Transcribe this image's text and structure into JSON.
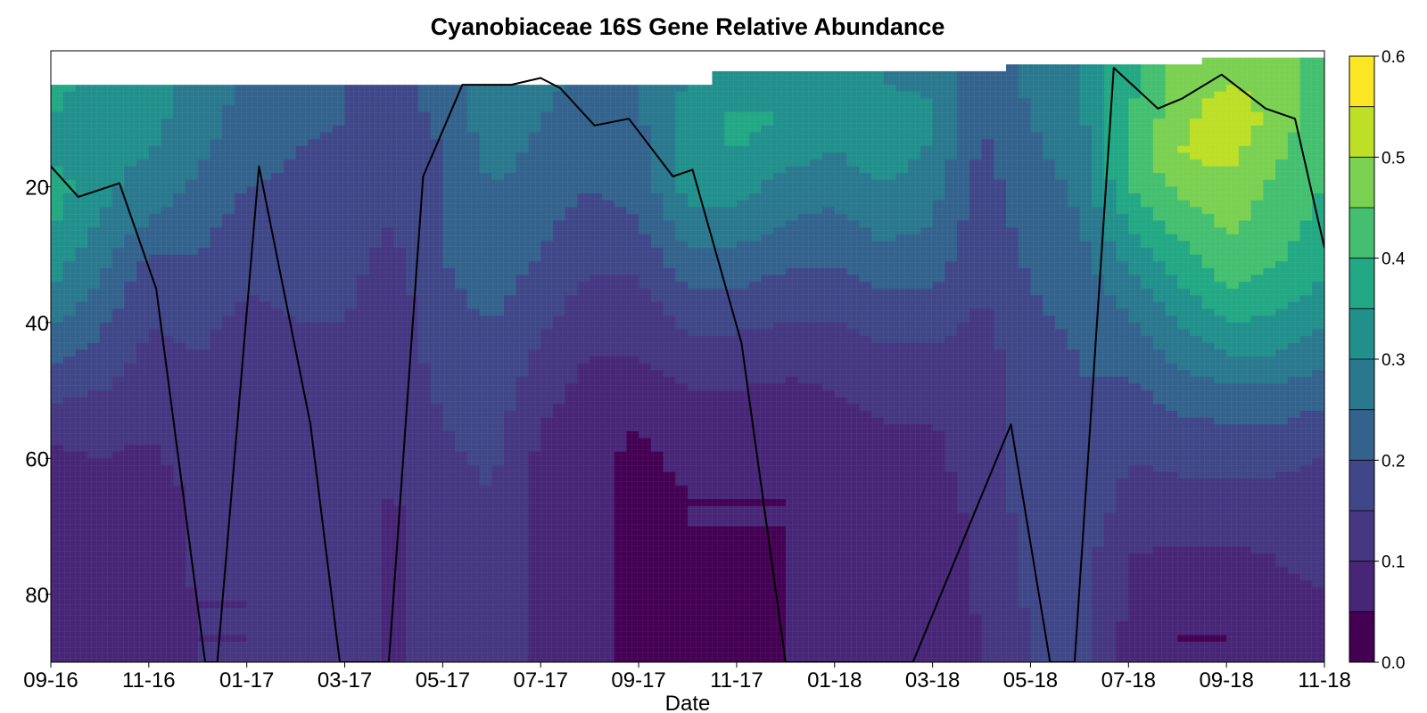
{
  "chart_data": {
    "type": "heatmap",
    "title": "Cyanobiaceae 16S Gene Relative Abundance",
    "xlabel": "Date",
    "ylabel": "",
    "x_tick_labels": [
      "09-16",
      "11-16",
      "01-17",
      "03-17",
      "05-17",
      "07-17",
      "09-17",
      "11-17",
      "01-18",
      "03-18",
      "05-18",
      "07-18",
      "09-18",
      "11-18"
    ],
    "y_ticks": [
      20,
      40,
      60,
      80
    ],
    "y_range": [
      0,
      90
    ],
    "y_inverted": true,
    "colorbar": {
      "ticks": [
        0.0,
        0.1,
        0.2,
        0.3,
        0.4,
        0.5,
        0.6
      ],
      "tick_labels": [
        "0.0",
        "0.1",
        "0.2",
        "0.3",
        "0.4",
        "0.5",
        "0.6"
      ],
      "levels": [
        0.0,
        0.05,
        0.1,
        0.15,
        0.2,
        0.25,
        0.3,
        0.35,
        0.4,
        0.45,
        0.5,
        0.55,
        0.6
      ],
      "colors": [
        "#440154",
        "#482677",
        "#453781",
        "#3f4788",
        "#33638d",
        "#2a788e",
        "#21908c",
        "#22a884",
        "#44bf70",
        "#7ad151",
        "#bddf26",
        "#fde725"
      ]
    },
    "x_index_range": [
      0,
      26
    ],
    "depths": [
      5,
      10,
      15,
      20,
      25,
      30,
      35,
      40,
      45,
      50,
      55,
      60,
      65,
      70,
      75,
      80,
      85,
      90
    ],
    "sample_index": [
      0,
      1,
      2,
      3,
      4,
      5,
      6,
      7,
      8,
      9,
      10,
      11,
      12,
      13,
      14,
      15,
      16,
      17,
      18,
      19,
      20,
      21,
      22,
      23,
      24,
      25,
      26
    ],
    "surface_depth": [
      5,
      5,
      5,
      5,
      5,
      5,
      5,
      5,
      5,
      5,
      5,
      5,
      5,
      5,
      3,
      3,
      3,
      3,
      3,
      3,
      2,
      2,
      2,
      2,
      1,
      1,
      1
    ],
    "abundance": [
      [
        0.36,
        0.34,
        0.33,
        0.28,
        0.24,
        0.22,
        0.2,
        0.18,
        0.22,
        0.3,
        0.26,
        0.24,
        0.25,
        0.3,
        0.33,
        0.32,
        0.3,
        0.3,
        0.29,
        0.22,
        0.26,
        0.3,
        0.38,
        0.46,
        0.5,
        0.48,
        0.42
      ],
      [
        0.35,
        0.33,
        0.32,
        0.27,
        0.23,
        0.21,
        0.2,
        0.18,
        0.21,
        0.28,
        0.25,
        0.23,
        0.24,
        0.33,
        0.36,
        0.35,
        0.33,
        0.34,
        0.31,
        0.2,
        0.25,
        0.29,
        0.4,
        0.48,
        0.54,
        0.48,
        0.42
      ],
      [
        0.34,
        0.32,
        0.3,
        0.26,
        0.22,
        0.2,
        0.19,
        0.17,
        0.2,
        0.27,
        0.24,
        0.22,
        0.23,
        0.34,
        0.35,
        0.32,
        0.3,
        0.33,
        0.29,
        0.19,
        0.24,
        0.27,
        0.42,
        0.5,
        0.52,
        0.46,
        0.41
      ],
      [
        0.38,
        0.31,
        0.28,
        0.24,
        0.2,
        0.19,
        0.18,
        0.16,
        0.2,
        0.25,
        0.23,
        0.2,
        0.22,
        0.32,
        0.32,
        0.28,
        0.26,
        0.3,
        0.27,
        0.18,
        0.23,
        0.26,
        0.4,
        0.46,
        0.48,
        0.44,
        0.4
      ],
      [
        0.36,
        0.3,
        0.25,
        0.22,
        0.18,
        0.18,
        0.17,
        0.15,
        0.2,
        0.24,
        0.21,
        0.18,
        0.2,
        0.28,
        0.28,
        0.25,
        0.24,
        0.27,
        0.25,
        0.17,
        0.22,
        0.25,
        0.36,
        0.42,
        0.46,
        0.43,
        0.38
      ],
      [
        0.33,
        0.27,
        0.2,
        0.2,
        0.16,
        0.17,
        0.16,
        0.14,
        0.2,
        0.23,
        0.2,
        0.16,
        0.17,
        0.24,
        0.24,
        0.22,
        0.21,
        0.24,
        0.23,
        0.16,
        0.21,
        0.23,
        0.32,
        0.38,
        0.44,
        0.41,
        0.36
      ],
      [
        0.3,
        0.24,
        0.17,
        0.18,
        0.15,
        0.16,
        0.16,
        0.13,
        0.19,
        0.22,
        0.18,
        0.14,
        0.14,
        0.2,
        0.2,
        0.18,
        0.18,
        0.2,
        0.2,
        0.15,
        0.2,
        0.22,
        0.28,
        0.34,
        0.4,
        0.38,
        0.34
      ],
      [
        0.26,
        0.21,
        0.15,
        0.16,
        0.14,
        0.15,
        0.15,
        0.12,
        0.18,
        0.2,
        0.16,
        0.12,
        0.12,
        0.16,
        0.16,
        0.15,
        0.15,
        0.17,
        0.17,
        0.14,
        0.19,
        0.21,
        0.24,
        0.3,
        0.35,
        0.34,
        0.3
      ],
      [
        0.21,
        0.18,
        0.14,
        0.15,
        0.13,
        0.15,
        0.14,
        0.12,
        0.17,
        0.19,
        0.14,
        0.1,
        0.1,
        0.13,
        0.13,
        0.12,
        0.12,
        0.14,
        0.14,
        0.13,
        0.18,
        0.2,
        0.21,
        0.26,
        0.3,
        0.3,
        0.26
      ],
      [
        0.17,
        0.15,
        0.13,
        0.14,
        0.12,
        0.14,
        0.14,
        0.11,
        0.16,
        0.18,
        0.12,
        0.08,
        0.07,
        0.1,
        0.1,
        0.09,
        0.1,
        0.12,
        0.12,
        0.12,
        0.18,
        0.2,
        0.19,
        0.22,
        0.24,
        0.24,
        0.22
      ],
      [
        0.12,
        0.12,
        0.11,
        0.13,
        0.12,
        0.14,
        0.13,
        0.1,
        0.15,
        0.17,
        0.1,
        0.07,
        0.05,
        0.08,
        0.08,
        0.07,
        0.08,
        0.1,
        0.1,
        0.12,
        0.18,
        0.2,
        0.17,
        0.19,
        0.2,
        0.2,
        0.18
      ],
      [
        0.09,
        0.1,
        0.09,
        0.12,
        0.12,
        0.13,
        0.13,
        0.1,
        0.14,
        0.16,
        0.09,
        0.06,
        0.04,
        0.06,
        0.06,
        0.06,
        0.07,
        0.09,
        0.09,
        0.12,
        0.18,
        0.2,
        0.15,
        0.16,
        0.16,
        0.16,
        0.15
      ],
      [
        0.08,
        0.09,
        0.08,
        0.11,
        0.11,
        0.13,
        0.12,
        0.1,
        0.13,
        0.15,
        0.08,
        0.06,
        0.04,
        0.05,
        0.05,
        0.05,
        0.06,
        0.08,
        0.09,
        0.11,
        0.18,
        0.19,
        0.14,
        0.14,
        0.14,
        0.14,
        0.13
      ],
      [
        0.07,
        0.08,
        0.08,
        0.11,
        0.11,
        0.13,
        0.12,
        0.09,
        0.13,
        0.15,
        0.08,
        0.06,
        0.04,
        0.05,
        0.05,
        0.05,
        0.06,
        0.08,
        0.08,
        0.11,
        0.17,
        0.18,
        0.12,
        0.12,
        0.12,
        0.12,
        0.12
      ],
      [
        0.07,
        0.08,
        0.08,
        0.11,
        0.11,
        0.13,
        0.12,
        0.09,
        0.12,
        0.14,
        0.08,
        0.06,
        0.04,
        0.05,
        0.04,
        0.05,
        0.06,
        0.07,
        0.08,
        0.11,
        0.16,
        0.17,
        0.1,
        0.08,
        0.08,
        0.1,
        0.11
      ],
      [
        0.06,
        0.07,
        0.08,
        0.1,
        0.1,
        0.12,
        0.12,
        0.09,
        0.12,
        0.14,
        0.08,
        0.06,
        0.04,
        0.05,
        0.04,
        0.05,
        0.06,
        0.07,
        0.08,
        0.11,
        0.16,
        0.17,
        0.1,
        0.06,
        0.06,
        0.09,
        0.1
      ],
      [
        0.06,
        0.07,
        0.07,
        0.1,
        0.1,
        0.12,
        0.12,
        0.09,
        0.12,
        0.14,
        0.08,
        0.06,
        0.04,
        0.05,
        0.04,
        0.05,
        0.06,
        0.07,
        0.07,
        0.1,
        0.15,
        0.16,
        0.09,
        0.05,
        0.05,
        0.08,
        0.1
      ],
      [
        0.06,
        0.07,
        0.07,
        0.1,
        0.1,
        0.12,
        0.12,
        0.09,
        0.12,
        0.14,
        0.08,
        0.06,
        0.04,
        0.05,
        0.04,
        0.05,
        0.06,
        0.07,
        0.07,
        0.1,
        0.15,
        0.16,
        0.09,
        0.05,
        0.05,
        0.08,
        0.1
      ]
    ],
    "line_series": {
      "x": [
        0,
        0.56,
        1.4,
        2.15,
        3.15,
        3.4,
        4.25,
        5.3,
        5.9,
        6.9,
        7.6,
        8.4,
        9.4,
        10.0,
        10.4,
        11.1,
        11.8,
        12.7,
        13.1,
        14.1,
        15.0,
        15.1,
        15.4,
        16.1,
        17.1,
        17.6,
        19.6,
        20.4,
        20.6,
        20.9,
        21.7,
        22.6,
        23.1,
        23.9,
        24.8,
        25.4,
        26.0
      ],
      "y": [
        17,
        21.5,
        19.5,
        35,
        90,
        90,
        17,
        55,
        90,
        90,
        18.5,
        5,
        5,
        4,
        5.5,
        11,
        10,
        18.5,
        17.5,
        43,
        90,
        90,
        90,
        90,
        90,
        90,
        55,
        90,
        90,
        90,
        2.5,
        8.5,
        7,
        3.5,
        8.5,
        10,
        29
      ],
      "cutoff": 90
    }
  }
}
